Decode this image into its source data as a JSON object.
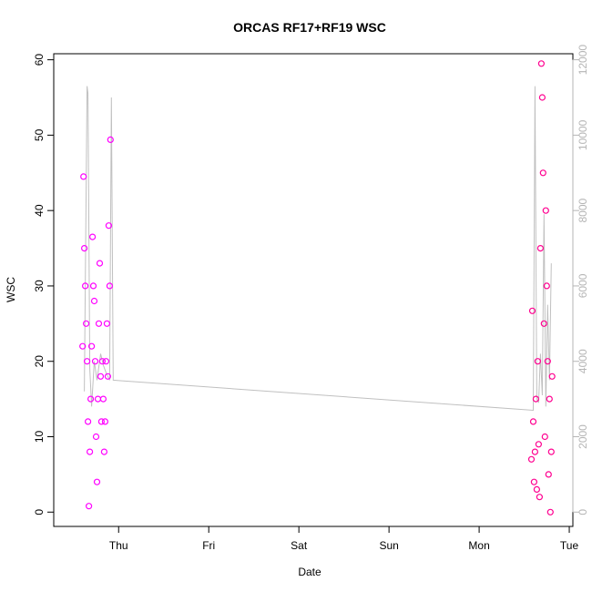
{
  "chart_data": {
    "type": "scatter",
    "title": "ORCAS RF17+RF19 WSC",
    "xlabel": "Date",
    "ylabel": "WSC",
    "x_ticks": [
      "Thu",
      "Fri",
      "Sat",
      "Sun",
      "Mon",
      "Tue"
    ],
    "x_tick_values": [
      1,
      2,
      3,
      4,
      5,
      6
    ],
    "xlim": [
      0.28,
      6.04
    ],
    "y_ticks": [
      0,
      10,
      20,
      30,
      40,
      50,
      60
    ],
    "ylim": [
      -1.9,
      60.8
    ],
    "y2_ticks": [
      "0",
      "2000",
      "4000",
      "6000",
      "8000",
      "10000",
      "12000"
    ],
    "y2_tick_values": [
      0,
      2000,
      4000,
      6000,
      8000,
      10000,
      12000
    ],
    "y2lim": [
      -380,
      12160
    ],
    "grid": false,
    "colors": {
      "rf17_points": "#ff00ff",
      "rf19_points": "#ff0090",
      "secondary_line": "#c0c0c0",
      "right_axis": "#b5b5b5"
    },
    "series": [
      {
        "type": "line",
        "axis": "right",
        "color": "#c0c0c0",
        "x": [
          0.62,
          0.65,
          0.66,
          0.68,
          0.7,
          0.73,
          0.76,
          0.8,
          0.83,
          0.86,
          0.88,
          0.9,
          0.92,
          0.94,
          5.6,
          5.62,
          5.64,
          5.66,
          5.68,
          5.7,
          5.72,
          5.74,
          5.76,
          5.78,
          5.8
        ],
        "y": [
          3200,
          11300,
          11100,
          3800,
          2800,
          4000,
          3500,
          4200,
          3900,
          3700,
          3600,
          3500,
          11000,
          3500,
          2700,
          11300,
          3000,
          2900,
          4200,
          3100,
          7900,
          2800,
          5500,
          3500,
          6600
        ]
      },
      {
        "type": "scatter",
        "axis": "left",
        "color": "#ff00ff",
        "x": [
          0.6,
          0.61,
          0.62,
          0.63,
          0.64,
          0.65,
          0.66,
          0.67,
          0.68,
          0.69,
          0.7,
          0.71,
          0.72,
          0.73,
          0.74,
          0.75,
          0.76,
          0.77,
          0.78,
          0.79,
          0.8,
          0.81,
          0.82,
          0.83,
          0.84,
          0.85,
          0.86,
          0.87,
          0.88,
          0.89,
          0.9,
          0.91
        ],
        "y": [
          22.0,
          44.5,
          35.0,
          30.0,
          25.0,
          20.0,
          12.0,
          0.8,
          8.0,
          15.0,
          22.0,
          36.5,
          30.0,
          28.0,
          20.0,
          10.0,
          4.0,
          15.0,
          25.0,
          33.0,
          18.0,
          12.0,
          20.0,
          15.0,
          8.0,
          12.0,
          20.0,
          25.0,
          18.0,
          38.0,
          30.0,
          49.4
        ]
      },
      {
        "type": "scatter",
        "axis": "left",
        "color": "#ff0090",
        "x": [
          5.58,
          5.59,
          5.6,
          5.61,
          5.62,
          5.63,
          5.64,
          5.65,
          5.66,
          5.67,
          5.68,
          5.69,
          5.7,
          5.71,
          5.72,
          5.73,
          5.74,
          5.75,
          5.76,
          5.77,
          5.78,
          5.79,
          5.8,
          5.81
        ],
        "y": [
          7.0,
          26.7,
          12.0,
          4.0,
          8.0,
          15.0,
          3.0,
          20.0,
          9.0,
          2.0,
          35.0,
          59.5,
          55.0,
          45.0,
          25.0,
          10.0,
          40.0,
          30.0,
          20.0,
          5.0,
          15.0,
          0.0,
          8.0,
          18.0
        ]
      }
    ]
  }
}
